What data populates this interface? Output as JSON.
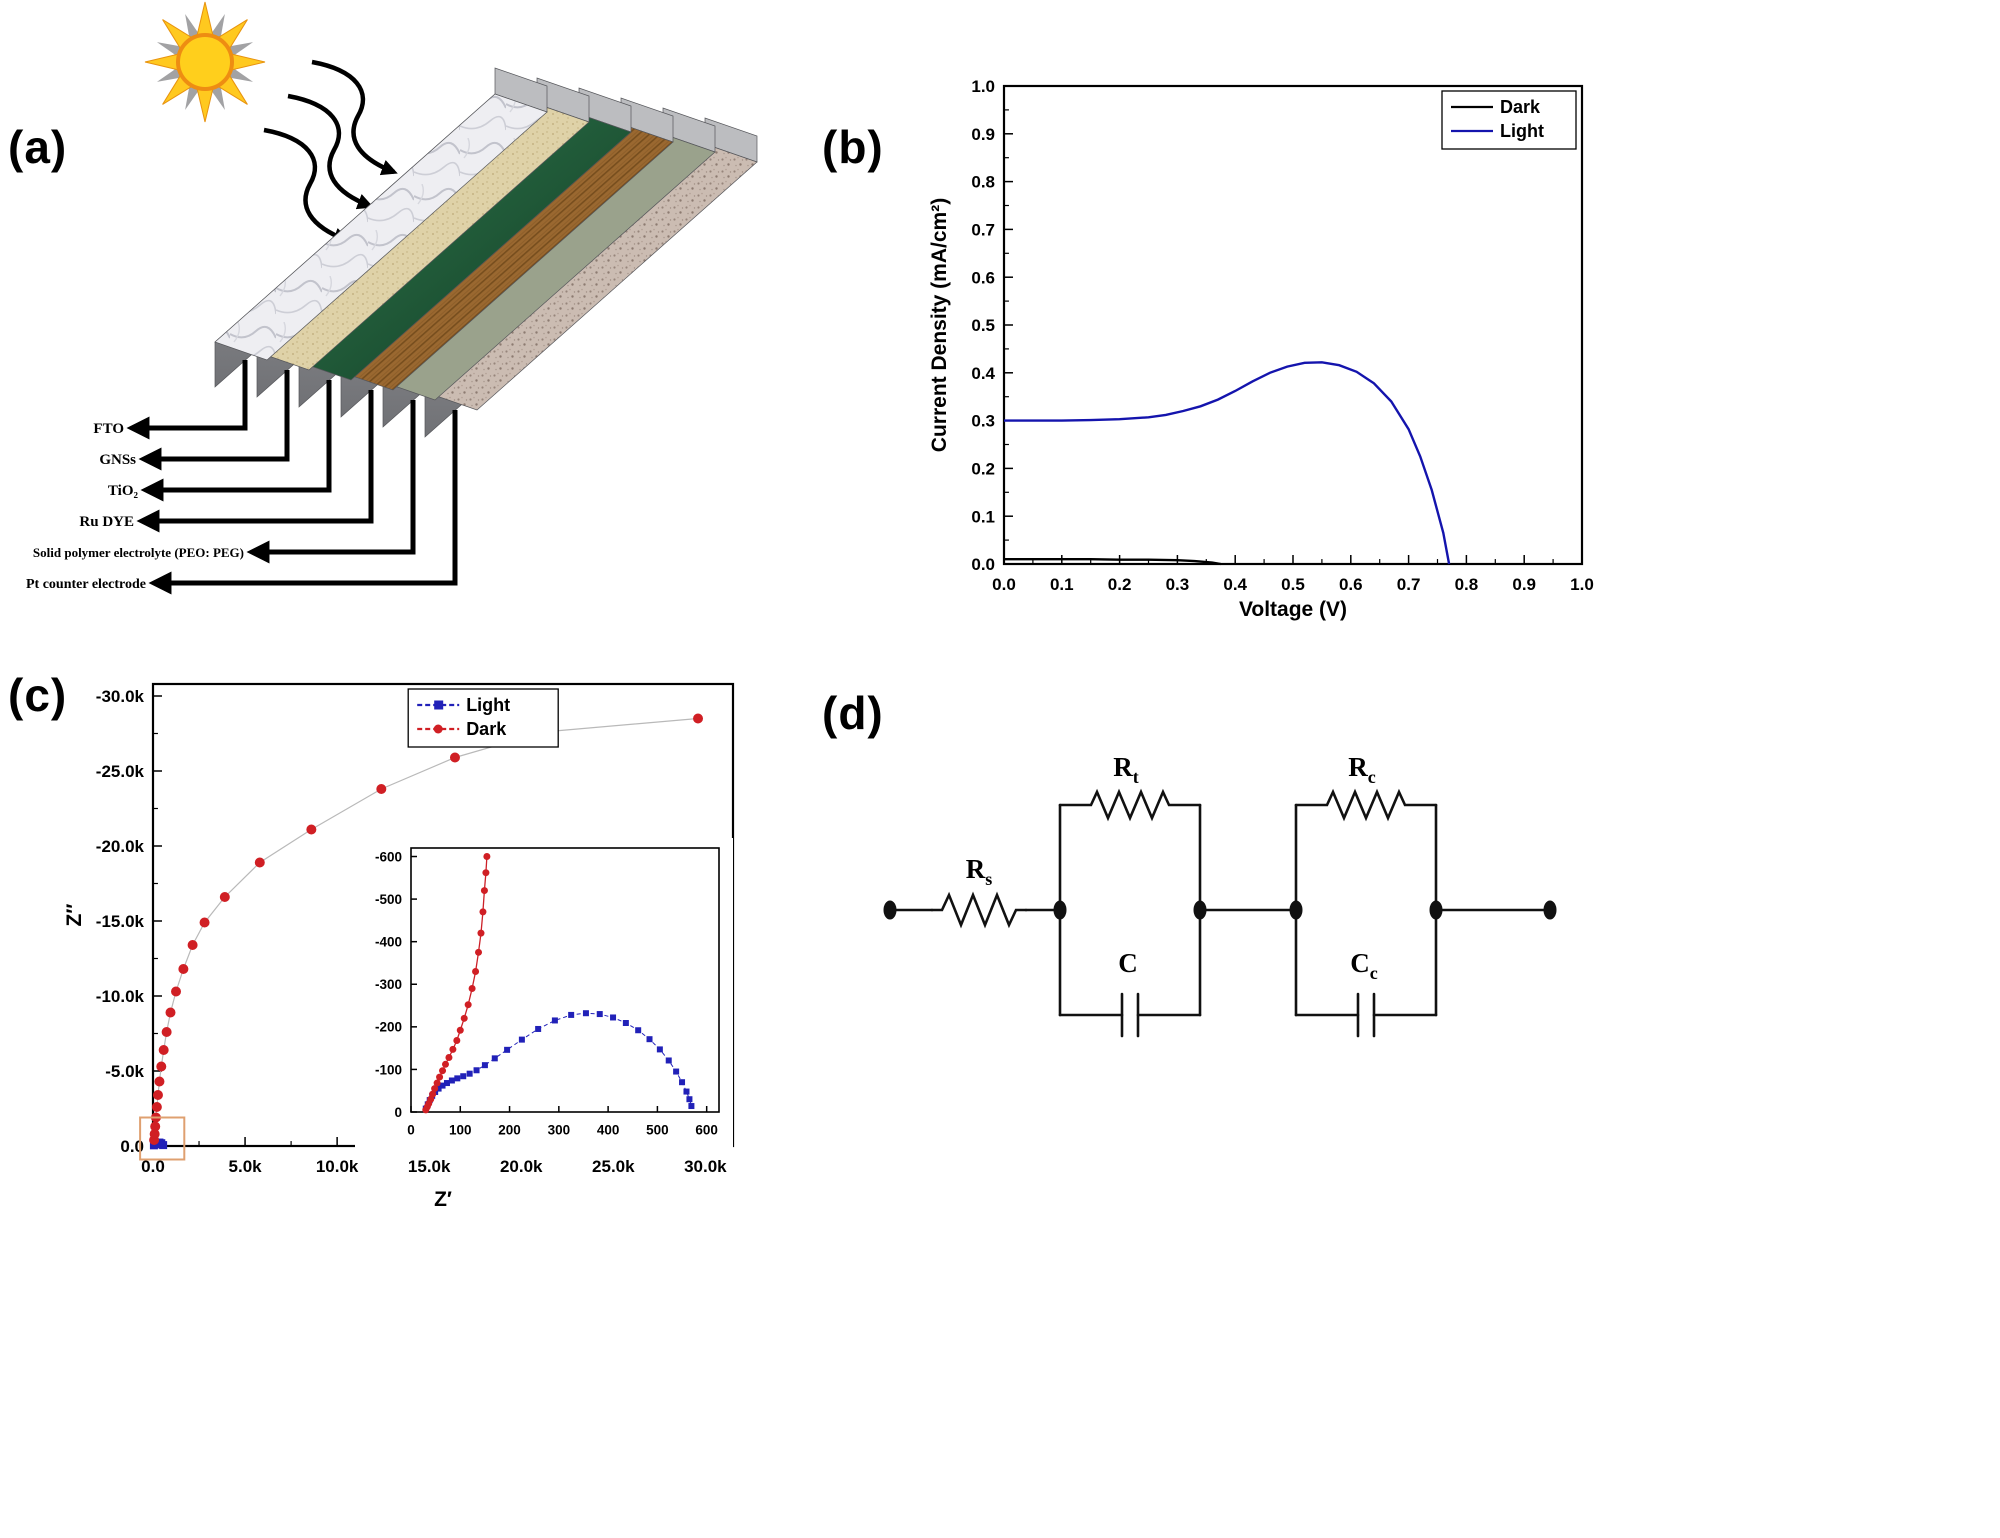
{
  "panel_labels": {
    "a": "(a)",
    "b": "(b)",
    "c": "(c)",
    "d": "(d)"
  },
  "panel_a": {
    "layer_labels": [
      "FTO",
      "GNSs",
      "TiO₂",
      "Ru DYE",
      "Solid polymer electrolyte (PEO: PEG)",
      "Pt counter electrode"
    ]
  },
  "circuit": {
    "rs": {
      "base": "R",
      "sub": "s"
    },
    "rt": {
      "base": "R",
      "sub": "t"
    },
    "rc": {
      "base": "R",
      "sub": "c"
    },
    "c1": {
      "base": "C",
      "sub": ""
    },
    "cc": {
      "base": "C",
      "sub": "c"
    }
  },
  "chart_data": [
    {
      "id": "jv",
      "type": "line",
      "title": "",
      "xlabel": "Voltage (V)",
      "ylabel": "Current Density (mA/cm²)",
      "xlim": [
        0,
        1.0
      ],
      "ylim": [
        0,
        1.0
      ],
      "xticks": {
        "v": [
          0,
          0.1,
          0.2,
          0.3,
          0.4,
          0.5,
          0.6,
          0.7,
          0.8,
          0.9,
          1.0
        ],
        "labels": [
          "0.0",
          "0.1",
          "0.2",
          "0.3",
          "0.4",
          "0.5",
          "0.6",
          "0.7",
          "0.8",
          "0.9",
          "1.0"
        ]
      },
      "yticks": {
        "v": [
          0,
          0.1,
          0.2,
          0.3,
          0.4,
          0.5,
          0.6,
          0.7,
          0.8,
          0.9,
          1.0
        ],
        "labels": [
          "0.0",
          "0.1",
          "0.2",
          "0.3",
          "0.4",
          "0.5",
          "0.6",
          "0.7",
          "0.8",
          "0.9",
          "1.0"
        ]
      },
      "legend_position": "top-right",
      "series": [
        {
          "name": "Dark",
          "color": "#000000",
          "marker": "none",
          "lw": 2.4,
          "x": [
            0,
            0.05,
            0.1,
            0.15,
            0.2,
            0.25,
            0.3,
            0.33,
            0.36,
            0.375
          ],
          "y": [
            0.01,
            0.01,
            0.01,
            0.01,
            0.009,
            0.009,
            0.008,
            0.006,
            0.003,
            0.0
          ]
        },
        {
          "name": "Light",
          "color": "#1414ad",
          "marker": "none",
          "lw": 2.4,
          "x": [
            0,
            0.05,
            0.1,
            0.15,
            0.2,
            0.25,
            0.28,
            0.31,
            0.34,
            0.37,
            0.4,
            0.43,
            0.46,
            0.49,
            0.52,
            0.55,
            0.58,
            0.61,
            0.64,
            0.67,
            0.7,
            0.72,
            0.74,
            0.76,
            0.77
          ],
          "y": [
            0.3,
            0.3,
            0.3,
            0.301,
            0.303,
            0.307,
            0.312,
            0.32,
            0.33,
            0.344,
            0.362,
            0.382,
            0.4,
            0.413,
            0.421,
            0.422,
            0.416,
            0.402,
            0.378,
            0.34,
            0.282,
            0.225,
            0.155,
            0.065,
            0.0
          ]
        }
      ]
    },
    {
      "id": "nyq",
      "type": "scatter",
      "title": "",
      "xlabel": "Z′",
      "ylabel": "Z″",
      "xlim": [
        0,
        31500
      ],
      "ylim": [
        0,
        -30800
      ],
      "xticks": {
        "v": [
          0,
          5000,
          10000,
          15000,
          20000,
          25000,
          30000
        ],
        "labels": [
          "0.0",
          "5.0k",
          "10.0k",
          "15.0k",
          "20.0k",
          "25.0k",
          "30.0k"
        ]
      },
      "yticks": {
        "v": [
          0,
          -5000,
          -10000,
          -15000,
          -20000,
          -25000,
          -30000
        ],
        "labels": [
          "0.0",
          "-5.0k",
          "-10.0k",
          "-15.0k",
          "-20.0k",
          "-25.0k",
          "-30.0k"
        ]
      },
      "legend_position": "top-center",
      "zoom_box": {
        "x": [
          -700,
          1700
        ],
        "y": [
          900,
          -1900
        ],
        "color": "#dfa070"
      },
      "series": [
        {
          "name": "Light",
          "color": "#2121b8",
          "marker": "square",
          "ms": 4,
          "line_color": "#9aa0c8",
          "lw": 1,
          "x": [
            50,
            150,
            250,
            350,
            450,
            550
          ],
          "y": [
            -45,
            -110,
            -205,
            -230,
            -185,
            -60
          ]
        },
        {
          "name": "Dark",
          "color": "#d01f24",
          "marker": "circle",
          "ms": 5,
          "line_color": "#b9b9b9",
          "lw": 1.2,
          "x": [
            60,
            90,
            120,
            160,
            210,
            270,
            350,
            450,
            580,
            740,
            950,
            1250,
            1650,
            2150,
            2800,
            3900,
            5800,
            8600,
            12400,
            16400,
            21200,
            29600
          ],
          "y": [
            -400,
            -800,
            -1300,
            -1900,
            -2600,
            -3400,
            -4300,
            -5300,
            -6400,
            -7600,
            -8900,
            -10300,
            -11800,
            -13400,
            -14900,
            -16600,
            -18900,
            -21100,
            -23800,
            -25900,
            -27600,
            -28500
          ]
        }
      ]
    },
    {
      "id": "inset",
      "type": "scatter",
      "title": "",
      "xlabel": "",
      "ylabel": "",
      "xlim": [
        0,
        625
      ],
      "ylim": [
        0,
        -620
      ],
      "xticks": {
        "v": [
          0,
          100,
          200,
          300,
          400,
          500,
          600
        ],
        "labels": [
          "0",
          "100",
          "200",
          "300",
          "400",
          "500",
          "600"
        ]
      },
      "yticks": {
        "v": [
          0,
          -100,
          -200,
          -300,
          -400,
          -500,
          -600
        ],
        "labels": [
          "0",
          "-100",
          "-200",
          "-300",
          "-400",
          "-500",
          "-600"
        ]
      },
      "legend_position": "none",
      "series": [
        {
          "name": "Light",
          "color": "#2121b8",
          "marker": "square",
          "ms": 3,
          "line_color": "#2121b8",
          "lw": 1,
          "dash": "4 3",
          "x": [
            30,
            34,
            38,
            43,
            49,
            56,
            64,
            73,
            83,
            94,
            106,
            119,
            133,
            150,
            170,
            195,
            225,
            258,
            292,
            325,
            355,
            383,
            410,
            436,
            461,
            484,
            505,
            523,
            538,
            550,
            559,
            565,
            569
          ],
          "y": [
            -8,
            -18,
            -28,
            -38,
            -47,
            -55,
            -62,
            -68,
            -74,
            -79,
            -84,
            -90,
            -98,
            -110,
            -126,
            -146,
            -170,
            -195,
            -215,
            -228,
            -232,
            -230,
            -222,
            -209,
            -192,
            -171,
            -147,
            -121,
            -95,
            -70,
            -48,
            -30,
            -14
          ]
        },
        {
          "name": "Dark",
          "color": "#d01f24",
          "marker": "circle",
          "ms": 3.5,
          "line_color": "#cc2028",
          "lw": 1.3,
          "x": [
            30,
            33,
            36,
            40,
            44,
            48,
            53,
            58,
            64,
            70,
            77,
            85,
            93,
            100,
            108,
            116,
            124,
            131,
            137,
            142,
            146,
            149,
            152,
            154
          ],
          "y": [
            -5,
            -12,
            -20,
            -30,
            -42,
            -55,
            -68,
            -82,
            -97,
            -112,
            -128,
            -147,
            -168,
            -192,
            -220,
            -252,
            -290,
            -330,
            -375,
            -420,
            -470,
            -520,
            -562,
            -600
          ]
        }
      ]
    }
  ]
}
